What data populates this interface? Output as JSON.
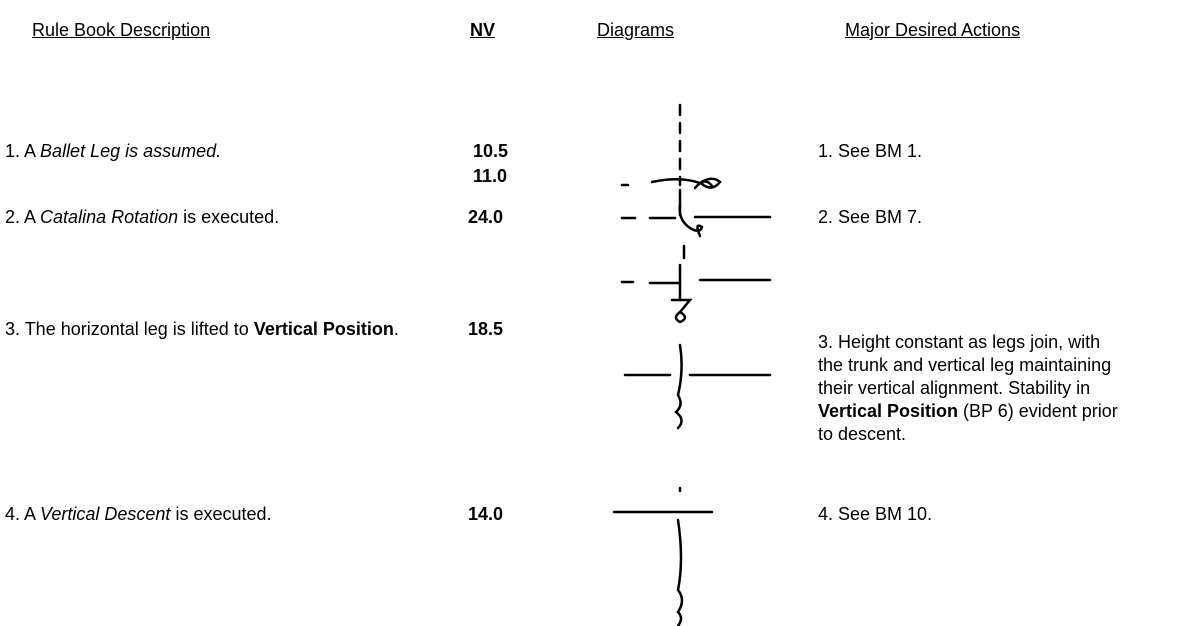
{
  "header": {
    "description": "Rule Book Description",
    "nv": "NV",
    "diagrams": "Diagrams",
    "actions": "Major Desired Actions"
  },
  "rows": [
    {
      "description": [
        {
          "text": "1. A "
        },
        {
          "text": "Ballet Leg is assumed.",
          "style": "italic"
        }
      ],
      "nv": [
        "10.5",
        "11.0"
      ],
      "actions": [
        {
          "text": "1. See BM 1."
        }
      ]
    },
    {
      "description": [
        {
          "text": "2. A "
        },
        {
          "text": "Catalina Rotation",
          "style": "italic"
        },
        {
          "text": " is executed."
        }
      ],
      "nv": [
        "24.0"
      ],
      "actions": [
        {
          "text": "2. See BM 7."
        }
      ]
    },
    {
      "description": [
        {
          "text": "3.  The horizontal leg is lifted to "
        },
        {
          "text": "Vertical Position",
          "style": "bold"
        },
        {
          "text": "."
        }
      ],
      "nv": [
        "18.5"
      ],
      "actions": [
        {
          "text": "3.  Height constant as legs join, with the trunk and vertical leg maintaining their vertical alignment.  Stability in "
        },
        {
          "text": "Vertical Position",
          "style": "bold"
        },
        {
          "text": " (BP 6) evident prior to descent."
        }
      ]
    },
    {
      "description": [
        {
          "text": "4. A "
        },
        {
          "text": "Vertical Descent",
          "style": "italic"
        },
        {
          "text": "  is executed."
        }
      ],
      "nv": [
        "14.0"
      ],
      "actions": [
        {
          "text": "4.  See BM 10."
        }
      ]
    }
  ]
}
